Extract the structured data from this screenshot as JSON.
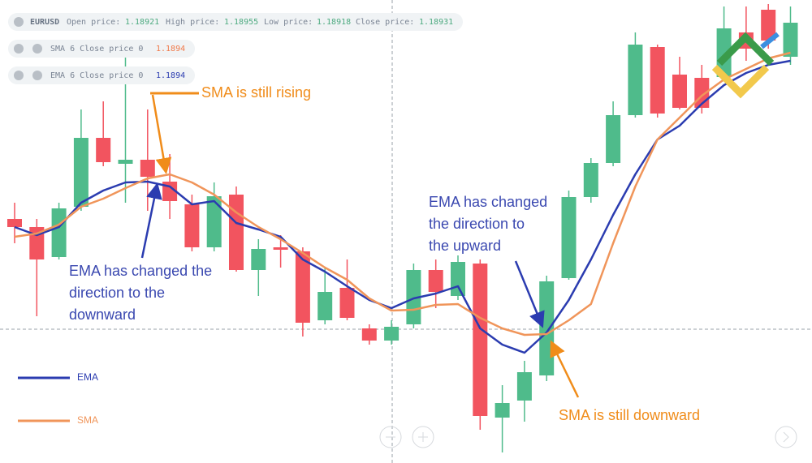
{
  "header": {
    "symbol": "EURUSD",
    "open_label": "Open price:",
    "open": 1.18921,
    "high_label": "High price:",
    "high": 1.18955,
    "low_label": "Low price:",
    "low": 1.18918,
    "close_label": "Close price:",
    "close": 1.18931
  },
  "indicators": [
    {
      "label": "SMA 6 Close price 0",
      "value": 1.1894,
      "color": "#f07a4a"
    },
    {
      "label": "EMA 6 Close price 0",
      "value": 1.1894,
      "color": "#2b3cb0"
    }
  ],
  "chart_data": {
    "type": "candlestick",
    "ylim": [
      1.18389,
      1.1896
    ],
    "series": [
      {
        "type": "candlestick",
        "up_color": "#4fbb8b",
        "down_color": "#f2545f",
        "open": [
          1.1869,
          1.1868,
          1.18643,
          1.18705,
          1.1879,
          1.18758,
          1.18763,
          1.18736,
          1.18708,
          1.18655,
          1.1872,
          1.18627,
          1.18655,
          1.1865,
          1.18565,
          1.18605,
          1.18555,
          1.1854,
          1.1856,
          1.18627,
          1.18595,
          1.18635,
          1.18445,
          1.18466,
          1.18497,
          1.18617,
          1.18717,
          1.18759,
          1.18818,
          1.18902,
          1.18868,
          1.18864,
          1.18865,
          1.1892,
          1.18948,
          1.1889
        ],
        "high": [
          1.1871,
          1.1869,
          1.1871,
          1.18825,
          1.18835,
          1.189,
          1.18825,
          1.1877,
          1.1872,
          1.18735,
          1.1873,
          1.18665,
          1.1867,
          1.18655,
          1.1863,
          1.1864,
          1.1856,
          1.18565,
          1.18635,
          1.1864,
          1.18645,
          1.1864,
          1.18485,
          1.18515,
          1.1862,
          1.18725,
          1.18765,
          1.18835,
          1.1892,
          1.18905,
          1.1889,
          1.1888,
          1.18952,
          1.18952,
          1.18955,
          1.18952
        ],
        "low": [
          1.1866,
          1.1857,
          1.1864,
          1.187,
          1.18755,
          1.1871,
          1.187,
          1.1869,
          1.1865,
          1.1865,
          1.18625,
          1.18595,
          1.1863,
          1.18545,
          1.1856,
          1.18565,
          1.18535,
          1.18535,
          1.18555,
          1.1858,
          1.1859,
          1.1843,
          1.18402,
          1.1844,
          1.1849,
          1.18615,
          1.1871,
          1.18755,
          1.18815,
          1.18815,
          1.18825,
          1.1882,
          1.1886,
          1.18885,
          1.189,
          1.1888
        ],
        "close": [
          1.1868,
          1.1864,
          1.18703,
          1.1879,
          1.1876,
          1.18763,
          1.18742,
          1.18712,
          1.18655,
          1.18718,
          1.18627,
          1.18653,
          1.18652,
          1.18562,
          1.186,
          1.18568,
          1.1854,
          1.18557,
          1.18627,
          1.186,
          1.18637,
          1.18447,
          1.18463,
          1.18501,
          1.18613,
          1.18717,
          1.18759,
          1.18818,
          1.18905,
          1.1882,
          1.18827,
          1.18827,
          1.18925,
          1.189,
          1.1891,
          1.18932
        ]
      },
      {
        "name": "EMA",
        "type": "line",
        "color": "#2b3cb0",
        "values": [
          1.1868,
          1.1867,
          1.1868,
          1.1871,
          1.18725,
          1.18735,
          1.18736,
          1.1873,
          1.18708,
          1.18712,
          1.18685,
          1.18677,
          1.18668,
          1.1864,
          1.18625,
          1.18607,
          1.1859,
          1.1858,
          1.18592,
          1.18598,
          1.18607,
          1.18555,
          1.18535,
          1.18525,
          1.1855,
          1.1859,
          1.1864,
          1.18695,
          1.18745,
          1.18788,
          1.18805,
          1.18832,
          1.18855,
          1.1887,
          1.1888,
          1.18885
        ]
      },
      {
        "name": "SMA",
        "type": "line",
        "color": "#f0955a",
        "values": [
          1.18668,
          1.18672,
          1.18683,
          1.18705,
          1.18715,
          1.18728,
          1.1874,
          1.18745,
          1.18735,
          1.1872,
          1.18698,
          1.1868,
          1.18665,
          1.18648,
          1.1863,
          1.18615,
          1.18592,
          1.18577,
          1.18578,
          1.18584,
          1.18585,
          1.18568,
          1.18555,
          1.18547,
          1.18548,
          1.18565,
          1.18585,
          1.1866,
          1.1873,
          1.18788,
          1.18815,
          1.18842,
          1.18862,
          1.18875,
          1.18888,
          1.18895
        ]
      }
    ],
    "annotations": [
      {
        "lines": [
          "SMA is still rising"
        ],
        "color": "#f08c1a"
      },
      {
        "lines": [
          "EMA has changed the",
          "direction to the",
          "downward"
        ],
        "color": "#3a48b0"
      },
      {
        "lines": [
          "EMA has changed",
          "the direction to",
          "the upward"
        ],
        "color": "#3a48b0"
      },
      {
        "lines": [
          "SMA is still downward"
        ],
        "color": "#f08c1a"
      }
    ]
  }
}
